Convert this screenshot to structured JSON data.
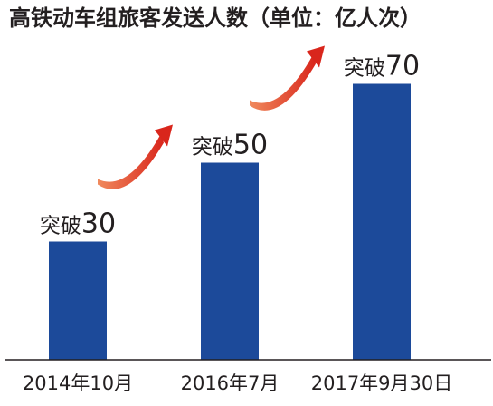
{
  "chart_data": {
    "type": "bar",
    "title": "高铁动车组旅客发送人数（单位：亿人次）",
    "categories": [
      "2014年10月",
      "2016年7月",
      "2017年9月30日"
    ],
    "values": [
      30,
      50,
      70
    ],
    "data_labels": [
      {
        "prefix": "突破",
        "value": "30"
      },
      {
        "prefix": "突破",
        "value": "50"
      },
      {
        "prefix": "突破",
        "value": "70"
      }
    ],
    "ylim": [
      0,
      80
    ],
    "grid": false,
    "legend": "none",
    "colors": {
      "bar": "#1c4a9a",
      "arrow": "#d9261c",
      "arrow_light": "#f08a5d",
      "text": "#231f20",
      "axis": "#231f20"
    }
  }
}
